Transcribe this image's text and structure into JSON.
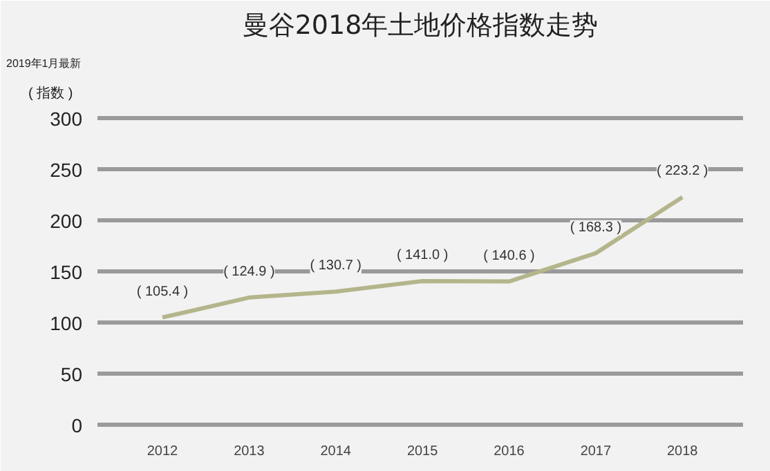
{
  "chart_data": {
    "type": "line",
    "title": "曼谷2018年土地价格指数走势",
    "ylabel": "( 指数 )",
    "annotations": [
      "2019年1月最新"
    ],
    "categories": [
      "2012",
      "2013",
      "2014",
      "2015",
      "2016",
      "2017",
      "2018"
    ],
    "series": [
      {
        "color": "#b5b58c",
        "values": [
          105.4,
          124.9,
          130.7,
          141.0,
          140.6,
          168.3,
          223.2
        ],
        "value_labels": [
          "( 105.4 )",
          "( 124.9 )",
          "( 130.7 )",
          "( 141.0 )",
          "( 140.6 )",
          "( 168.3 )",
          "( 223.2 )"
        ]
      }
    ],
    "ylim": [
      -5,
      310
    ],
    "yticks": [
      0,
      50,
      100,
      150,
      200,
      250,
      300
    ],
    "grid": "y",
    "marker": "none",
    "line_style": "solid"
  }
}
